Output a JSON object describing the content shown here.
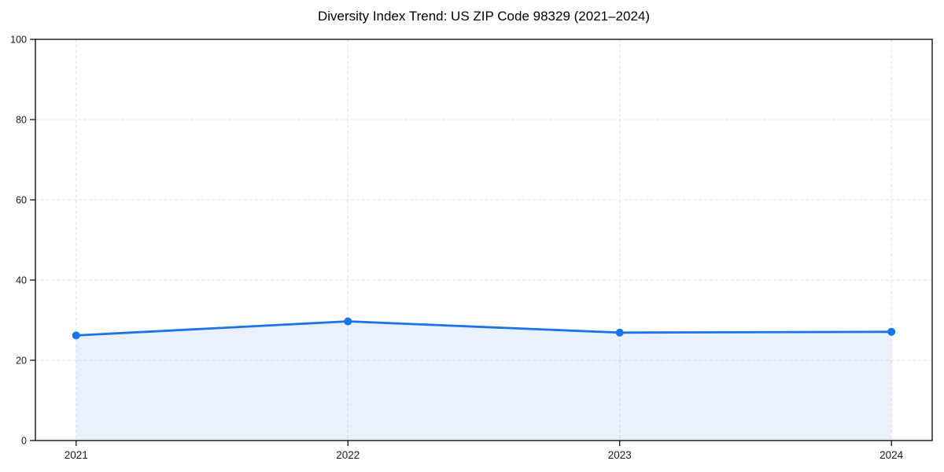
{
  "chart_data": {
    "type": "area",
    "title": "Diversity Index Trend: US ZIP Code 98329 (2021–2024)",
    "series_name": "Diversity Index",
    "x": [
      2021,
      2022,
      2023,
      2024
    ],
    "values": [
      26.2,
      29.7,
      26.9,
      27.1
    ],
    "xtick_labels": [
      "2021",
      "2022",
      "2023",
      "2024"
    ],
    "yticks": [
      0,
      20,
      40,
      60,
      80,
      100
    ],
    "ylim": [
      0,
      100
    ],
    "xlim": [
      2020.85,
      2024.15
    ],
    "xlabel": "",
    "ylabel": "",
    "legend": "none",
    "grid": {
      "on": true,
      "style": "dashed",
      "color": "#e0e0e0"
    },
    "marker": "circle",
    "colors": {
      "line": "#1a73e8",
      "marker": "#1a73e8",
      "area_fill": "rgba(26,115,232,0.10)",
      "spine": "#000000",
      "tick_text": "#1a1a1a",
      "title_text": "#000000",
      "background": "#ffffff"
    }
  }
}
